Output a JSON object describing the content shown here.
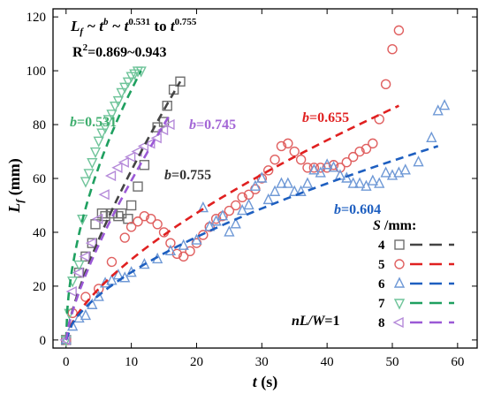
{
  "chart_data": {
    "type": "scatter",
    "title": "",
    "xlabel": "t (s)",
    "ylabel": "Lf (mm)",
    "xlim": [
      -2,
      63
    ],
    "ylim": [
      -3,
      123
    ],
    "xticks": [
      0,
      10,
      20,
      30,
      40,
      50,
      60
    ],
    "yticks": [
      0,
      20,
      40,
      60,
      80,
      100,
      120
    ],
    "grid": false,
    "legend": {
      "title": "S /mm:",
      "placement": "bottom-right"
    },
    "annotations": {
      "formula": "Lf ~ t^b ~ t^0.531 to t^0.755",
      "r2": "R2=0.869~0.943",
      "condition": "nL/W=1"
    },
    "series": [
      {
        "name": "4",
        "marker": "square",
        "color": "#6e6e6e",
        "points": [
          [
            0,
            0
          ],
          [
            2,
            25
          ],
          [
            3,
            31
          ],
          [
            4,
            36
          ],
          [
            4.5,
            43
          ],
          [
            5.5,
            47
          ],
          [
            6,
            46
          ],
          [
            7,
            47
          ],
          [
            8,
            46
          ],
          [
            8.5,
            47
          ],
          [
            9.5,
            45
          ],
          [
            10,
            50
          ],
          [
            11,
            57
          ],
          [
            12,
            65
          ],
          [
            14,
            79
          ],
          [
            15,
            81
          ],
          [
            15.5,
            87
          ],
          [
            16.5,
            93
          ],
          [
            17.5,
            96
          ]
        ],
        "fit": {
          "b": 0.755,
          "label": "b=0.755",
          "x": [
            0,
            17.5
          ],
          "y": [
            0,
            96
          ]
        }
      },
      {
        "name": "5",
        "marker": "circle",
        "color": "#e06060",
        "points": [
          [
            0,
            0
          ],
          [
            1,
            10
          ],
          [
            3,
            16
          ],
          [
            5,
            19
          ],
          [
            7,
            29
          ],
          [
            9,
            38
          ],
          [
            10,
            42
          ],
          [
            11,
            44
          ],
          [
            12,
            46
          ],
          [
            13,
            45
          ],
          [
            14,
            43
          ],
          [
            15,
            40
          ],
          [
            16,
            36
          ],
          [
            17,
            32
          ],
          [
            18,
            31
          ],
          [
            19,
            33
          ],
          [
            20,
            36
          ],
          [
            21,
            39
          ],
          [
            22,
            42
          ],
          [
            23,
            45
          ],
          [
            24,
            46
          ],
          [
            25,
            48
          ],
          [
            26,
            50
          ],
          [
            27,
            53
          ],
          [
            28,
            54
          ],
          [
            29,
            56
          ],
          [
            30,
            60
          ],
          [
            31,
            63
          ],
          [
            32,
            67
          ],
          [
            33,
            72
          ],
          [
            34,
            73
          ],
          [
            35,
            70
          ],
          [
            36,
            67
          ],
          [
            37,
            64
          ],
          [
            38,
            64
          ],
          [
            39,
            64
          ],
          [
            40,
            64
          ],
          [
            41,
            65
          ],
          [
            42,
            64
          ],
          [
            43,
            66
          ],
          [
            44,
            68
          ],
          [
            45,
            70
          ],
          [
            46,
            71
          ],
          [
            47,
            73
          ],
          [
            48,
            82
          ],
          [
            49,
            95
          ],
          [
            50,
            108
          ],
          [
            51,
            115
          ]
        ],
        "fit": {
          "b": 0.655,
          "label": "b=0.655",
          "x": [
            0,
            51
          ],
          "y": [
            0,
            87
          ]
        }
      },
      {
        "name": "6",
        "marker": "triangle-up",
        "color": "#6f99d6",
        "points": [
          [
            0,
            0
          ],
          [
            1,
            5
          ],
          [
            2,
            8
          ],
          [
            3,
            9
          ],
          [
            4,
            13
          ],
          [
            5,
            16
          ],
          [
            6,
            21
          ],
          [
            7,
            22
          ],
          [
            8,
            24
          ],
          [
            9,
            23
          ],
          [
            10,
            25
          ],
          [
            12,
            28
          ],
          [
            14,
            30
          ],
          [
            16,
            33
          ],
          [
            18,
            35
          ],
          [
            20,
            37
          ],
          [
            21,
            49
          ],
          [
            22,
            42
          ],
          [
            23,
            44
          ],
          [
            24,
            46
          ],
          [
            25,
            40
          ],
          [
            26,
            43
          ],
          [
            27,
            48
          ],
          [
            28,
            50
          ],
          [
            29,
            57
          ],
          [
            30,
            60
          ],
          [
            31,
            52
          ],
          [
            32,
            55
          ],
          [
            33,
            58
          ],
          [
            34,
            58
          ],
          [
            35,
            55
          ],
          [
            36,
            55
          ],
          [
            37,
            58
          ],
          [
            38,
            63
          ],
          [
            39,
            62
          ],
          [
            40,
            65
          ],
          [
            41,
            64
          ],
          [
            42,
            61
          ],
          [
            43,
            60
          ],
          [
            44,
            58
          ],
          [
            45,
            58
          ],
          [
            46,
            57
          ],
          [
            47,
            59
          ],
          [
            48,
            58
          ],
          [
            49,
            62
          ],
          [
            50,
            61
          ],
          [
            51,
            62
          ],
          [
            52,
            63
          ],
          [
            54,
            66
          ],
          [
            56,
            75
          ],
          [
            57,
            85
          ],
          [
            58,
            87
          ]
        ],
        "fit": {
          "b": 0.604,
          "label": "b=0.604",
          "x": [
            0,
            57
          ],
          "y": [
            0,
            72
          ]
        }
      },
      {
        "name": "7",
        "marker": "triangle-down",
        "color": "#6fc49a",
        "points": [
          [
            0,
            0
          ],
          [
            0.5,
            10
          ],
          [
            1,
            22
          ],
          [
            2,
            28
          ],
          [
            2.5,
            45
          ],
          [
            3,
            59
          ],
          [
            3.5,
            62
          ],
          [
            4,
            66
          ],
          [
            4.5,
            70
          ],
          [
            5,
            74
          ],
          [
            5.5,
            77
          ],
          [
            6,
            79
          ],
          [
            6.5,
            82
          ],
          [
            7,
            84
          ],
          [
            7.5,
            87
          ],
          [
            8,
            89
          ],
          [
            8.5,
            92
          ],
          [
            9,
            94
          ],
          [
            9.5,
            96
          ],
          [
            10,
            98
          ],
          [
            10.5,
            99
          ],
          [
            11,
            100
          ],
          [
            11.5,
            100
          ]
        ],
        "fit": {
          "b": 0.531,
          "label": "b=0.531",
          "x": [
            0,
            11.5
          ],
          "y": [
            0,
            100
          ]
        }
      },
      {
        "name": "8",
        "marker": "triangle-left",
        "color": "#b58ad9",
        "points": [
          [
            0,
            0
          ],
          [
            1,
            18
          ],
          [
            2,
            25
          ],
          [
            3,
            31
          ],
          [
            4,
            36
          ],
          [
            5,
            45
          ],
          [
            6,
            54
          ],
          [
            7,
            61
          ],
          [
            8,
            64
          ],
          [
            9,
            66
          ],
          [
            10,
            68
          ],
          [
            11,
            70
          ],
          [
            12,
            72
          ],
          [
            13,
            73
          ],
          [
            14,
            75
          ],
          [
            15,
            78
          ],
          [
            16,
            80
          ]
        ],
        "fit": {
          "b": 0.745,
          "label": "b=0.745",
          "x": [
            0,
            16
          ],
          "y": [
            0,
            84
          ]
        }
      }
    ]
  }
}
